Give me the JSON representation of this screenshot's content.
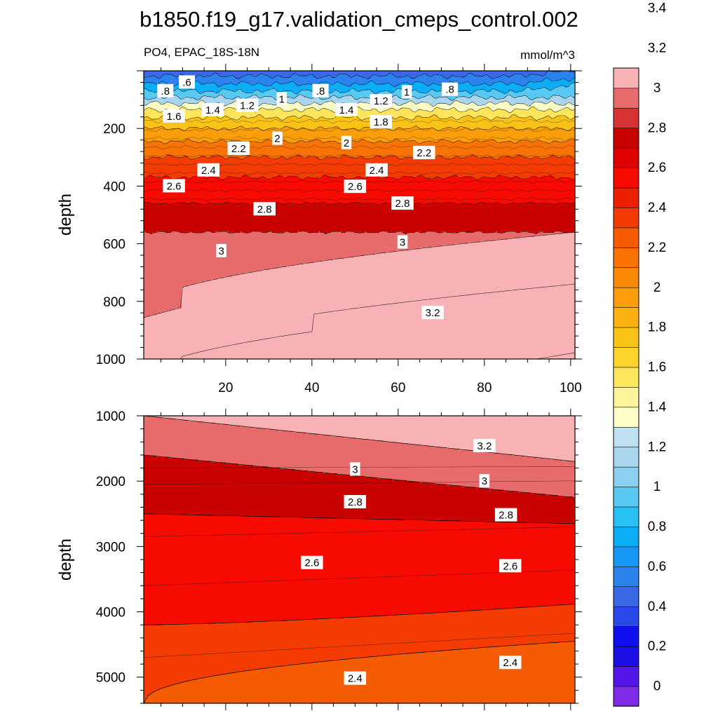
{
  "figure": {
    "title": "b1850.f19_g17.validation_cmeps_control.002",
    "subtitle_left": "PO4, EPAC_18S-18N",
    "subtitle_right": "mmol/m^3"
  },
  "chart_data": [
    {
      "type": "heatmap",
      "panel": "upper",
      "variable": "PO4",
      "region": "EPAC_18S-18N",
      "units": "mmol/m^3",
      "xlabel": "",
      "ylabel": "depth",
      "xlim": [
        1,
        101
      ],
      "ylim": [
        1000,
        0
      ],
      "x_ticks": [
        20,
        40,
        60,
        80,
        100
      ],
      "y_ticks": [
        200,
        400,
        600,
        800,
        1000
      ],
      "contour_levels_depth_m": [
        {
          "level": 0.6,
          "depth": 18
        },
        {
          "level": 0.8,
          "depth": 45
        },
        {
          "level": 1.0,
          "depth": 70
        },
        {
          "level": 1.2,
          "depth": 92
        },
        {
          "level": 1.4,
          "depth": 113
        },
        {
          "level": 1.6,
          "depth": 135
        },
        {
          "level": 1.8,
          "depth": 162
        },
        {
          "level": 2.0,
          "depth": 200
        },
        {
          "level": 2.2,
          "depth": 245
        },
        {
          "level": 2.4,
          "depth": 300
        },
        {
          "level": 2.6,
          "depth": 370
        },
        {
          "level": 2.8,
          "depth": 460
        },
        {
          "level": 3.0,
          "depth": 560
        },
        {
          "level": 3.2,
          "depth_west": 1000,
          "depth_east": 740
        }
      ],
      "labels": [
        {
          "text": ".6",
          "x": 11,
          "y": 40
        },
        {
          "text": ".8",
          "x": 6,
          "y": 70
        },
        {
          "text": "1",
          "x": 33,
          "y": 98
        },
        {
          "text": ".8",
          "x": 42,
          "y": 70
        },
        {
          "text": "1",
          "x": 62,
          "y": 74
        },
        {
          "text": ".8",
          "x": 72,
          "y": 65
        },
        {
          "text": "1.6",
          "x": 8,
          "y": 158
        },
        {
          "text": "1.4",
          "x": 17,
          "y": 136
        },
        {
          "text": "1.2",
          "x": 25,
          "y": 121
        },
        {
          "text": "1.4",
          "x": 48,
          "y": 136
        },
        {
          "text": "1.2",
          "x": 56,
          "y": 105
        },
        {
          "text": "1.8",
          "x": 56,
          "y": 178
        },
        {
          "text": "2",
          "x": 32,
          "y": 235
        },
        {
          "text": "2",
          "x": 48,
          "y": 250
        },
        {
          "text": "2.2",
          "x": 23,
          "y": 270
        },
        {
          "text": "2.2",
          "x": 66,
          "y": 285
        },
        {
          "text": "2.4",
          "x": 16,
          "y": 345
        },
        {
          "text": "2.4",
          "x": 55,
          "y": 345
        },
        {
          "text": "2.6",
          "x": 8,
          "y": 400
        },
        {
          "text": "2.6",
          "x": 50,
          "y": 402
        },
        {
          "text": "2.8",
          "x": 29,
          "y": 480
        },
        {
          "text": "2.8",
          "x": 61,
          "y": 460
        },
        {
          "text": "3",
          "x": 19,
          "y": 625
        },
        {
          "text": "3",
          "x": 61,
          "y": 595
        },
        {
          "text": "3.2",
          "x": 68,
          "y": 840
        }
      ]
    },
    {
      "type": "heatmap",
      "panel": "lower",
      "variable": "PO4",
      "xlabel": "",
      "ylabel": "depth",
      "xlim": [
        1,
        101
      ],
      "ylim": [
        1000,
        5400
      ],
      "x_ticks": [
        20,
        40,
        60,
        80,
        100
      ],
      "y_ticks": [
        1000,
        2000,
        3000,
        4000,
        5000
      ],
      "contour_lines_depth_m": [
        {
          "level": 3.2,
          "depth_west": 1000,
          "depth_east": 1700
        },
        {
          "level": 3.0,
          "depth_west": 1600,
          "depth_east": 2250
        },
        {
          "level": 2.8,
          "depth_west": 2500,
          "depth_east": 2650
        },
        {
          "level": 2.6,
          "depth_west": 4200,
          "depth_east": 3880
        },
        {
          "level": 2.4,
          "depth_west": 5400,
          "depth_east": 4450
        }
      ],
      "labels": [
        {
          "text": "3.2",
          "x": 80,
          "y": 1460
        },
        {
          "text": "3",
          "x": 50,
          "y": 1820
        },
        {
          "text": "3",
          "x": 80,
          "y": 2000
        },
        {
          "text": "2.8",
          "x": 50,
          "y": 2320
        },
        {
          "text": "2.8",
          "x": 85,
          "y": 2520
        },
        {
          "text": "2.6",
          "x": 40,
          "y": 3250
        },
        {
          "text": "2.6",
          "x": 86,
          "y": 3300
        },
        {
          "text": "2.4",
          "x": 50,
          "y": 5020
        },
        {
          "text": "2.4",
          "x": 86,
          "y": 4780
        }
      ]
    }
  ],
  "colorbar": {
    "tick_labels": [
      "0",
      "0.2",
      "0.4",
      "0.6",
      "0.8",
      "1",
      "1.2",
      "1.4",
      "1.6",
      "1.8",
      "2",
      "2.2",
      "2.4",
      "2.6",
      "2.8",
      "3",
      "3.2",
      "3.4"
    ],
    "colors": [
      "#7f2be8",
      "#5216e8",
      "#1d0ee6",
      "#0f0ff0",
      "#2a49e9",
      "#3a68e6",
      "#2c82ee",
      "#1698f5",
      "#09aef6",
      "#26c2f5",
      "#57c9f3",
      "#8ccff0",
      "#a9d5ef",
      "#c0e1f2",
      "#fdfdc6",
      "#fdf49b",
      "#fde65b",
      "#fed52c",
      "#fcc317",
      "#fbb20f",
      "#fb9e0a",
      "#fa8a04",
      "#f87304",
      "#f45b03",
      "#f33b02",
      "#ee1e01",
      "#f70a00",
      "#e10000",
      "#c90200",
      "#d93232",
      "#e86b6b",
      "#f8b2b5"
    ]
  }
}
